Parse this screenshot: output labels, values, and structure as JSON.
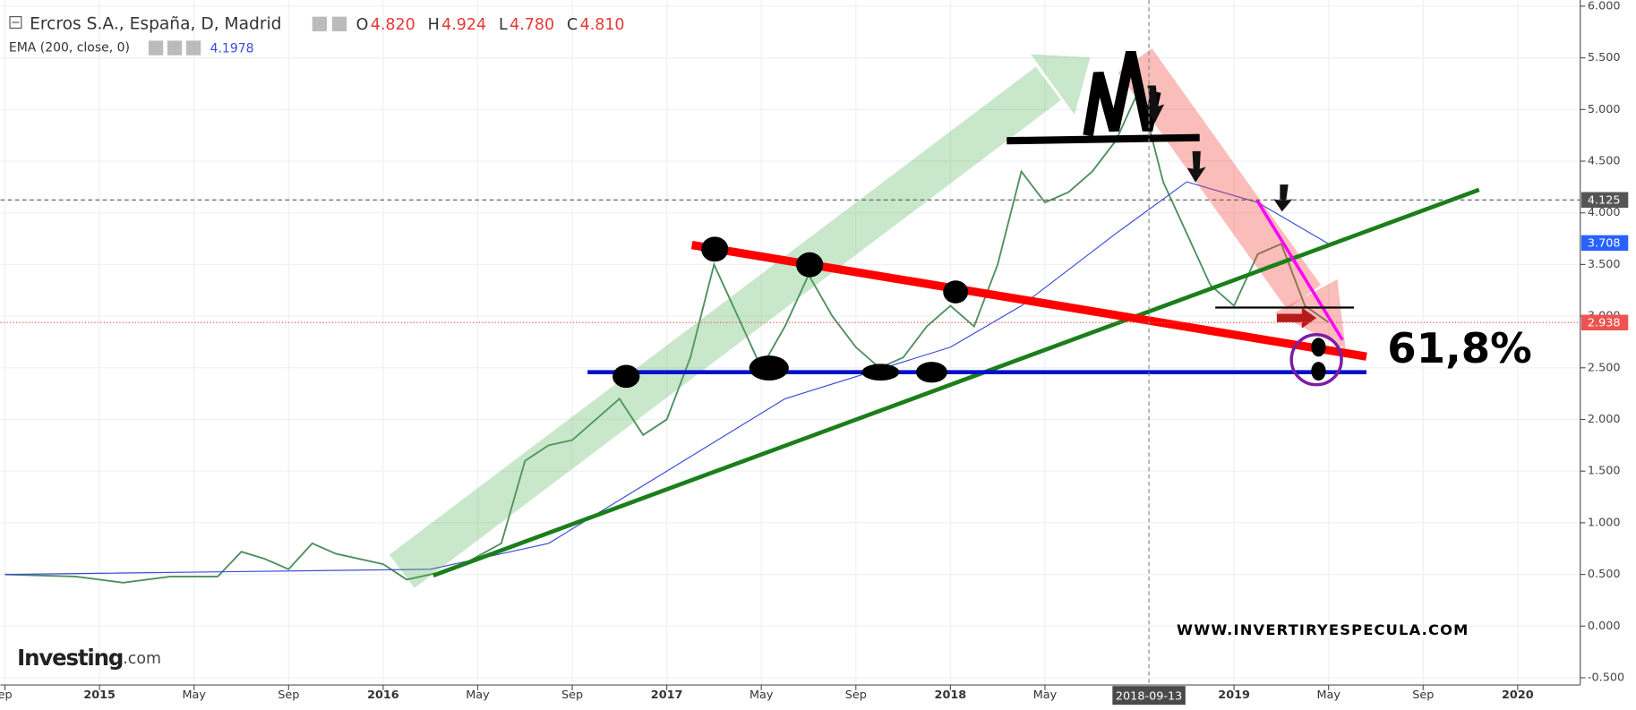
{
  "chart_data": {
    "type": "line",
    "header_values": [
      {
        "name": "O",
        "text": "4.820"
      },
      {
        "name": "H",
        "text": "4.924"
      },
      {
        "name": "L",
        "text": "4.780"
      },
      {
        "name": "C",
        "text": "4.810"
      }
    ],
    "series": [
      {
        "name": "Ercros S.A., España, D, Madrid",
        "color": "#4f8f5f",
        "x": [
          "2014-09",
          "2014-12",
          "2015-02",
          "2015-04",
          "2015-06",
          "2015-07",
          "2015-08",
          "2015-09",
          "2015-10",
          "2015-11",
          "2016-01",
          "2016-02",
          "2016-04",
          "2016-06",
          "2016-07",
          "2016-08",
          "2016-09",
          "2016-10",
          "2016-11",
          "2016-12",
          "2017-01",
          "2017-02",
          "2017-03",
          "2017-04",
          "2017-05",
          "2017-06",
          "2017-07",
          "2017-08",
          "2017-09",
          "2017-10",
          "2017-11",
          "2017-12",
          "2018-01",
          "2018-02",
          "2018-03",
          "2018-04",
          "2018-05",
          "2018-06",
          "2018-07",
          "2018-08",
          "2018-09",
          "2018-10",
          "2018-11",
          "2018-12",
          "2019-01",
          "2019-02",
          "2019-03",
          "2019-04",
          "2019-05"
        ],
        "values": [
          0.5,
          0.48,
          0.42,
          0.48,
          0.48,
          0.72,
          0.65,
          0.55,
          0.8,
          0.7,
          0.6,
          0.45,
          0.55,
          0.8,
          1.6,
          1.75,
          1.8,
          2.0,
          2.2,
          1.85,
          2.0,
          2.6,
          3.5,
          3.0,
          2.5,
          2.9,
          3.4,
          3.0,
          2.7,
          2.5,
          2.6,
          2.9,
          3.1,
          2.9,
          3.5,
          4.4,
          4.1,
          4.2,
          4.4,
          4.7,
          5.2,
          4.3,
          3.8,
          3.3,
          3.1,
          3.6,
          3.7,
          3.1,
          2.94
        ]
      },
      {
        "name": "EMA (200, close, 0)",
        "color": "#3b4bd8",
        "last_label": "4.1978",
        "x": [
          "2014-09",
          "2016-03",
          "2016-08",
          "2017-01",
          "2017-06",
          "2018-01",
          "2018-04",
          "2018-08",
          "2018-11",
          "2019-02",
          "2019-05"
        ],
        "values": [
          0.5,
          0.55,
          0.8,
          1.5,
          2.2,
          2.7,
          3.1,
          3.8,
          4.3,
          4.1,
          3.7
        ]
      }
    ],
    "price_lines": [
      {
        "value": 4.125,
        "label": "4.125",
        "color": "#555555"
      },
      {
        "value": 3.708,
        "label": "3.708",
        "color": "#2962ff"
      },
      {
        "value": 2.938,
        "label": "2.938",
        "color": "#ef5350"
      }
    ],
    "crosshair": "2018-09-13",
    "xlim": [
      "2014-09",
      "2020-04"
    ],
    "xticks": [
      {
        "value": "2014-09",
        "label": "ep"
      },
      {
        "value": "2015-01",
        "label": "2015"
      },
      {
        "value": "2015-05",
        "label": "May"
      },
      {
        "value": "2015-09",
        "label": "Sep"
      },
      {
        "value": "2016-01",
        "label": "2016"
      },
      {
        "value": "2016-05",
        "label": "May"
      },
      {
        "value": "2016-09",
        "label": "Sep"
      },
      {
        "value": "2017-01",
        "label": "2017"
      },
      {
        "value": "2017-05",
        "label": "May"
      },
      {
        "value": "2017-09",
        "label": "Sep"
      },
      {
        "value": "2018-01",
        "label": "2018"
      },
      {
        "value": "2018-05",
        "label": "May"
      },
      {
        "value": "2019-01",
        "label": "2019"
      },
      {
        "value": "2019-05",
        "label": "May"
      },
      {
        "value": "2019-09",
        "label": "Sep"
      },
      {
        "value": "2020-01",
        "label": "2020"
      }
    ],
    "ylim": [
      -0.57,
      6.06
    ],
    "yticks": [
      {
        "value": -0.5,
        "label": "-0.500"
      },
      {
        "value": 0,
        "label": "0.000"
      },
      {
        "value": 0.5,
        "label": "0.500"
      },
      {
        "value": 1,
        "label": "1.000"
      },
      {
        "value": 1.5,
        "label": "1.500"
      },
      {
        "value": 2,
        "label": "2.000"
      },
      {
        "value": 2.5,
        "label": "2.500"
      },
      {
        "value": 3,
        "label": "3.000"
      },
      {
        "value": 3.5,
        "label": "3.500"
      },
      {
        "value": 4,
        "label": "4.000"
      },
      {
        "value": 4.5,
        "label": "4.500"
      },
      {
        "value": 5,
        "label": "5.000"
      },
      {
        "value": 5.5,
        "label": "5.500"
      },
      {
        "value": 6,
        "label": "6.000"
      }
    ],
    "annotations": [
      "61,8%",
      "WWW.INVERTIRYESPECULA.COM"
    ],
    "logo": [
      "Investing",
      ".com"
    ]
  }
}
